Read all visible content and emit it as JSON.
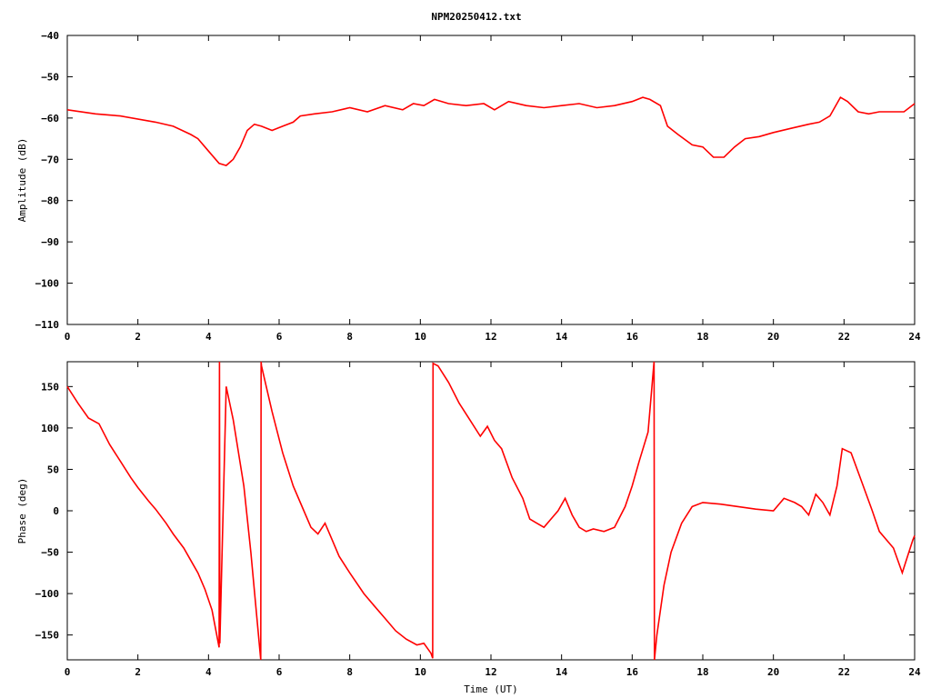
{
  "title": "NPM20250412.txt",
  "colors": {
    "series": "#ff0000",
    "axis": "#000000",
    "background": "#ffffff"
  },
  "chart_data": [
    {
      "type": "line",
      "ylabel": "Amplitude (dB)",
      "xlabel": "",
      "xlim": [
        0,
        24
      ],
      "ylim": [
        -110,
        -40
      ],
      "xticks": [
        "0",
        "2",
        "4",
        "6",
        "8",
        "10",
        "12",
        "14",
        "16",
        "18",
        "20",
        "22",
        "24"
      ],
      "yticks": [
        "-40",
        "-50",
        "-60",
        "-70",
        "-80",
        "-90",
        "-100",
        "-110"
      ],
      "grid": false,
      "series": [
        {
          "x": [
            0,
            0.8,
            1.5,
            2.5,
            3.0,
            3.5,
            3.7,
            4.0,
            4.3,
            4.5,
            4.7,
            4.9,
            5.1,
            5.3,
            5.5,
            5.8,
            6.1,
            6.4,
            6.6,
            7.0,
            7.5,
            8.0,
            8.5,
            9.0,
            9.5,
            9.8,
            10.1,
            10.4,
            10.8,
            11.3,
            11.8,
            12.1,
            12.5,
            13.0,
            13.5,
            14.0,
            14.5,
            15.0,
            15.5,
            16.0,
            16.3,
            16.5,
            16.8,
            17.0,
            17.3,
            17.7,
            18.0,
            18.3,
            18.6,
            18.9,
            19.2,
            19.6,
            20.0,
            20.5,
            21.0,
            21.3,
            21.6,
            21.9,
            22.1,
            22.4,
            22.7,
            23.0,
            23.5,
            23.7,
            24.0
          ],
          "y": [
            -58,
            -59,
            -59.5,
            -61,
            -62,
            -64,
            -65,
            -68,
            -71,
            -71.5,
            -70,
            -67,
            -63,
            -61.5,
            -62,
            -63,
            -62,
            -61,
            -59.5,
            -59,
            -58.5,
            -57.5,
            -58.5,
            -57,
            -58,
            -56.5,
            -57,
            -55.5,
            -56.5,
            -57,
            -56.5,
            -58,
            -56,
            -57,
            -57.5,
            -57,
            -56.5,
            -57.5,
            -57,
            -56,
            -55,
            -55.5,
            -57,
            -62,
            -64,
            -66.5,
            -67,
            -69.5,
            -69.5,
            -67,
            -65,
            -64.5,
            -63.5,
            -62.5,
            -61.5,
            -61,
            -59.5,
            -55,
            -56,
            -58.5,
            -59,
            -58.5,
            -58.5,
            -58.5,
            -56.5
          ]
        }
      ]
    },
    {
      "type": "line",
      "ylabel": "Phase (deg)",
      "xlabel": "Time (UT)",
      "xlim": [
        0,
        24
      ],
      "ylim": [
        -180,
        180
      ],
      "xticks": [
        "0",
        "2",
        "4",
        "6",
        "8",
        "10",
        "12",
        "14",
        "16",
        "18",
        "20",
        "22",
        "24"
      ],
      "yticks": [
        "150",
        "100",
        "50",
        "0",
        "-50",
        "-100",
        "-150"
      ],
      "grid": false,
      "series": [
        {
          "x": [
            0,
            0.3,
            0.6,
            0.9,
            1.2,
            1.5,
            1.8,
            2.0,
            2.3,
            2.5,
            2.8,
            3.0,
            3.3,
            3.5,
            3.7,
            3.9,
            4.1,
            4.3,
            4.31,
            4.32,
            4.5,
            4.7,
            5.0,
            5.2,
            5.48,
            5.49,
            5.5,
            5.8,
            6.1,
            6.4,
            6.7,
            6.9,
            7.1,
            7.3,
            7.5,
            7.7,
            8.0,
            8.4,
            8.7,
            9.0,
            9.3,
            9.6,
            9.9,
            10.1,
            10.3,
            10.35,
            10.36,
            10.5,
            10.8,
            11.1,
            11.4,
            11.7,
            11.9,
            12.1,
            12.3,
            12.6,
            12.9,
            13.1,
            13.3,
            13.5,
            13.7,
            13.9,
            14.1,
            14.3,
            14.5,
            14.7,
            14.9,
            15.2,
            15.5,
            15.8,
            16.0,
            16.2,
            16.45,
            16.6,
            16.62,
            16.63,
            16.7,
            16.9,
            17.1,
            17.4,
            17.7,
            18.0,
            18.5,
            19.0,
            19.5,
            20.0,
            20.3,
            20.6,
            20.8,
            21.0,
            21.2,
            21.4,
            21.6,
            21.8,
            21.95,
            22.2,
            22.5,
            22.8,
            23.0,
            23.4,
            23.65,
            23.8,
            23.95,
            24.0
          ],
          "y": [
            150,
            130,
            112,
            105,
            80,
            60,
            40,
            28,
            12,
            2,
            -15,
            -28,
            -45,
            -60,
            -75,
            -95,
            -120,
            -165,
            180,
            -160,
            150,
            110,
            30,
            -50,
            -180,
            180,
            175,
            120,
            70,
            30,
            0,
            -20,
            -28,
            -15,
            -35,
            -55,
            -75,
            -100,
            -115,
            -130,
            -145,
            -155,
            -162,
            -160,
            -172,
            -178,
            178,
            175,
            155,
            130,
            110,
            90,
            102,
            85,
            75,
            40,
            15,
            -10,
            -15,
            -20,
            -10,
            0,
            15,
            -5,
            -20,
            -25,
            -22,
            -25,
            -20,
            5,
            30,
            60,
            95,
            170,
            180,
            -180,
            -150,
            -90,
            -50,
            -15,
            5,
            10,
            8,
            5,
            2,
            0,
            15,
            10,
            5,
            -5,
            20,
            10,
            -5,
            30,
            75,
            70,
            35,
            0,
            -25,
            -45,
            -75,
            -55,
            -35,
            -30
          ]
        }
      ]
    }
  ]
}
